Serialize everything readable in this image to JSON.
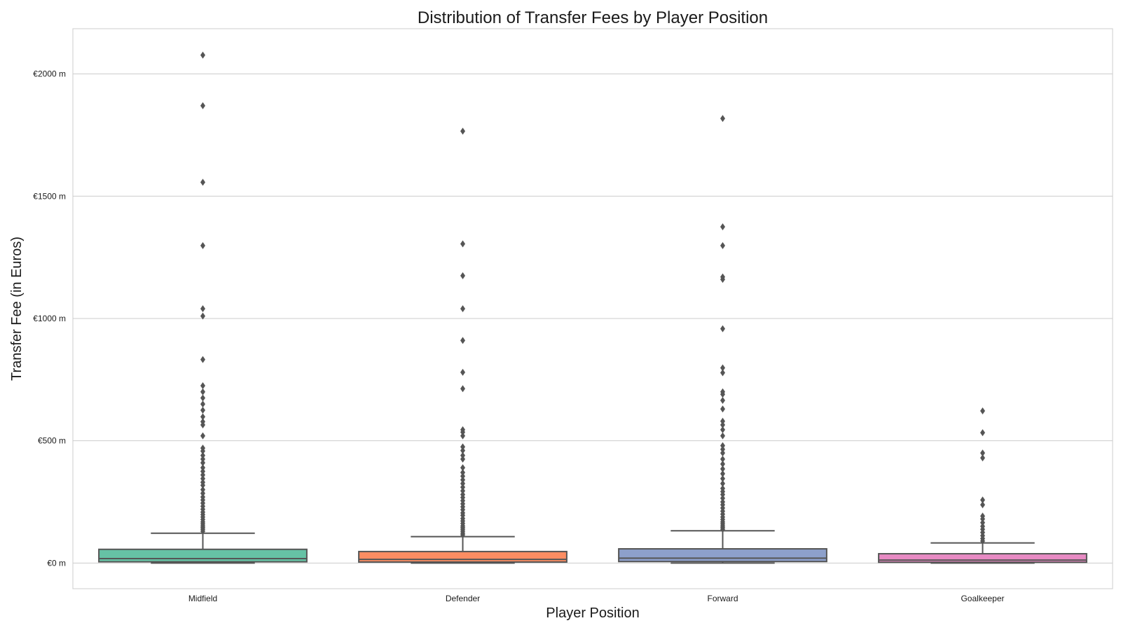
{
  "chart_data": {
    "type": "box",
    "title": "Distribution of Transfer Fees by Player Position",
    "xlabel": "Player Position",
    "ylabel": "Transfer Fee (in Euros)",
    "y_ticks": [
      {
        "value": 0,
        "label": "€0 m"
      },
      {
        "value": 500,
        "label": "€500 m"
      },
      {
        "value": 1000,
        "label": "€1000 m"
      },
      {
        "value": 1500,
        "label": "€1500 m"
      },
      {
        "value": 2000,
        "label": "€2000 m"
      }
    ],
    "ylim": [
      -105,
      2185
    ],
    "grid": "horizontal",
    "categories": [
      {
        "name": "Midfield",
        "color": "#66c2a5",
        "whisker_low": 0,
        "q1": 5,
        "median": 18,
        "q3": 56,
        "whisker_high": 122,
        "outliers": [
          2077,
          1870,
          1557,
          1298,
          1040,
          1010,
          832,
          725,
          700,
          675,
          650,
          625,
          598,
          578,
          565,
          520,
          470,
          458,
          440,
          425,
          410,
          390,
          375,
          360,
          345,
          330,
          318,
          300,
          285,
          270,
          258,
          245,
          232,
          220,
          208,
          198,
          188,
          178,
          168,
          160,
          152,
          145,
          138,
          130
        ]
      },
      {
        "name": "Defender",
        "color": "#fc8d62",
        "whisker_low": 0,
        "q1": 4,
        "median": 15,
        "q3": 47,
        "whisker_high": 108,
        "outliers": [
          1766,
          1305,
          1175,
          1040,
          910,
          780,
          713,
          545,
          535,
          520,
          475,
          460,
          440,
          425,
          390,
          370,
          355,
          340,
          325,
          310,
          295,
          280,
          268,
          255,
          242,
          230,
          218,
          205,
          195,
          182,
          172,
          162,
          152,
          145,
          138,
          130,
          122,
          115
        ]
      },
      {
        "name": "Forward",
        "color": "#8da0cb",
        "whisker_low": 0,
        "q1": 6,
        "median": 20,
        "q3": 58,
        "whisker_high": 132,
        "outliers": [
          1818,
          1375,
          1298,
          1170,
          1160,
          958,
          798,
          778,
          700,
          690,
          665,
          630,
          580,
          565,
          545,
          520,
          480,
          465,
          450,
          425,
          405,
          385,
          365,
          345,
          325,
          305,
          292,
          280,
          265,
          250,
          238,
          225,
          212,
          200,
          188,
          178,
          168,
          160,
          152,
          145,
          138
        ]
      },
      {
        "name": "Goalkeeper",
        "color": "#e78ac3",
        "whisker_low": 0,
        "q1": 3,
        "median": 12,
        "q3": 38,
        "whisker_high": 82,
        "outliers": [
          622,
          533,
          450,
          430,
          258,
          238,
          192,
          180,
          165,
          150,
          138,
          125,
          112,
          100,
          90
        ]
      }
    ]
  }
}
